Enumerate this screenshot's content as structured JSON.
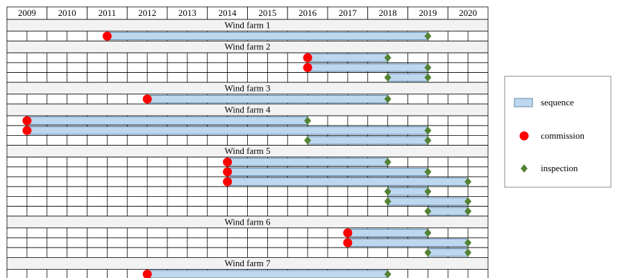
{
  "chart_data": {
    "type": "timeline",
    "categories": [
      2009,
      2010,
      2011,
      2012,
      2013,
      2014,
      2015,
      2016,
      2017,
      2018,
      2019,
      2020
    ],
    "legend": [
      {
        "name": "sequence",
        "color": "#bdd7ee"
      },
      {
        "name": "commission",
        "color": "#ff0000"
      },
      {
        "name": "inspection",
        "color": "#548235"
      }
    ],
    "groups": [
      {
        "name": "Wind farm 1",
        "rows": [
          {
            "start": 2011,
            "end": 2019,
            "start_event": "commission",
            "end_event": "inspection"
          }
        ]
      },
      {
        "name": "Wind farm 2",
        "rows": [
          {
            "start": 2016,
            "end": 2018,
            "start_event": "commission",
            "end_event": "inspection"
          },
          {
            "start": 2016,
            "end": 2019,
            "start_event": "commission",
            "end_event": "inspection"
          },
          {
            "start": 2018,
            "end": 2019,
            "start_event": "inspection",
            "end_event": "inspection"
          }
        ]
      },
      {
        "name": "Wind farm 3",
        "rows": [
          {
            "start": 2012,
            "end": 2018,
            "start_event": "commission",
            "end_event": "inspection"
          }
        ]
      },
      {
        "name": "Wind farm 4",
        "rows": [
          {
            "start": 2009,
            "end": 2016,
            "start_event": "commission",
            "end_event": "inspection"
          },
          {
            "start": 2009,
            "end": 2019,
            "start_event": "commission",
            "end_event": "inspection"
          },
          {
            "start": 2016,
            "end": 2019,
            "start_event": "inspection",
            "end_event": "inspection"
          }
        ]
      },
      {
        "name": "Wind farm 5",
        "rows": [
          {
            "start": 2014,
            "end": 2018,
            "start_event": "commission",
            "end_event": "inspection"
          },
          {
            "start": 2014,
            "end": 2019,
            "start_event": "commission",
            "end_event": "inspection"
          },
          {
            "start": 2014,
            "end": 2020,
            "start_event": "commission",
            "end_event": "inspection"
          },
          {
            "start": 2018,
            "end": 2019,
            "start_event": "inspection",
            "end_event": "inspection"
          },
          {
            "start": 2018,
            "end": 2020,
            "start_event": "inspection",
            "end_event": "inspection"
          },
          {
            "start": 2019,
            "end": 2020,
            "start_event": "inspection",
            "end_event": "inspection"
          }
        ]
      },
      {
        "name": "Wind farm 6",
        "rows": [
          {
            "start": 2017,
            "end": 2019,
            "start_event": "commission",
            "end_event": "inspection"
          },
          {
            "start": 2017,
            "end": 2020,
            "start_event": "commission",
            "end_event": "inspection"
          },
          {
            "start": 2019,
            "end": 2020,
            "start_event": "inspection",
            "end_event": "inspection"
          }
        ]
      },
      {
        "name": "Wind farm 7",
        "rows": [
          {
            "start": 2012,
            "end": 2018,
            "start_event": "commission",
            "end_event": "inspection"
          }
        ]
      }
    ]
  }
}
